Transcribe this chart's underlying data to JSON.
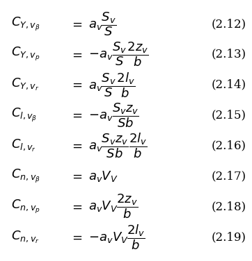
{
  "equations": [
    {
      "lhs": "C_{Y,v_{\\beta}}",
      "rhs": "a_v \\dfrac{S_v}{S}",
      "number": "(2.12)"
    },
    {
      "lhs": "C_{Y,v_p}",
      "rhs": "-a_v \\dfrac{S_v}{S} \\dfrac{2z_v}{b}",
      "number": "(2.13)"
    },
    {
      "lhs": "C_{Y,v_r}",
      "rhs": "a_v \\dfrac{S_v}{S} \\dfrac{2l_v}{b}",
      "number": "(2.14)"
    },
    {
      "lhs": "C_{l,v_{\\beta}}",
      "rhs": "-a_v \\dfrac{S_v z_v}{Sb}",
      "number": "(2.15)"
    },
    {
      "lhs": "C_{l,v_r}",
      "rhs": "a_v \\dfrac{S_v z_v}{Sb} \\dfrac{2l_v}{b}",
      "number": "(2.16)"
    },
    {
      "lhs": "C_{n,v_{\\beta}}",
      "rhs": "a_v V_V",
      "number": "(2.17)"
    },
    {
      "lhs": "C_{n,v_p}",
      "rhs": "a_v V_V \\dfrac{2z_v}{b}",
      "number": "(2.18)"
    },
    {
      "lhs": "C_{n,v_r}",
      "rhs": "-a_v V_V \\dfrac{2l_v}{b}",
      "number": "(2.19)"
    }
  ],
  "background_color": "#ffffff",
  "text_color": "#000000",
  "font_size": 13,
  "number_font_size": 12,
  "fig_width": 3.62,
  "fig_height": 3.76,
  "dpi": 100
}
